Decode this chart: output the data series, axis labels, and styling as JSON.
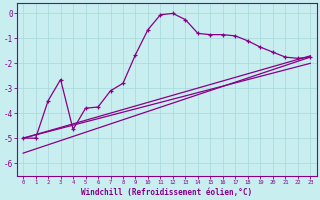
{
  "xlabel": "Windchill (Refroidissement éolien,°C)",
  "bg_color": "#c8eef0",
  "grid_color": "#a8d8da",
  "line_color": "#880088",
  "xlim": [
    -0.5,
    23.5
  ],
  "ylim": [
    -6.5,
    0.4
  ],
  "yticks": [
    0,
    -1,
    -2,
    -3,
    -4,
    -5,
    -6
  ],
  "xticks": [
    0,
    1,
    2,
    3,
    4,
    5,
    6,
    7,
    8,
    9,
    10,
    11,
    12,
    13,
    14,
    15,
    16,
    17,
    18,
    19,
    20,
    21,
    22,
    23
  ],
  "jagged_x": [
    0,
    1,
    2,
    3,
    4,
    5,
    6,
    7,
    8,
    9,
    10,
    11,
    12,
    13,
    14,
    15,
    16,
    17,
    18,
    19,
    20,
    21,
    22,
    23
  ],
  "jagged_y": [
    -5.0,
    -5.0,
    -3.5,
    -2.65,
    -4.65,
    -3.8,
    -3.75,
    -3.1,
    -2.8,
    -1.65,
    -0.65,
    -0.05,
    0.0,
    -0.25,
    -0.8,
    -0.85,
    -0.85,
    -0.9,
    -1.1,
    -1.35,
    -1.55,
    -1.75,
    -1.8,
    -1.75
  ],
  "line1_x": [
    0,
    23
  ],
  "line1_y": [
    -5.0,
    -1.7
  ],
  "line2_x": [
    0,
    23
  ],
  "line2_y": [
    -5.0,
    -2.0
  ],
  "line3_x": [
    0,
    23
  ],
  "line3_y": [
    -5.6,
    -1.75
  ]
}
